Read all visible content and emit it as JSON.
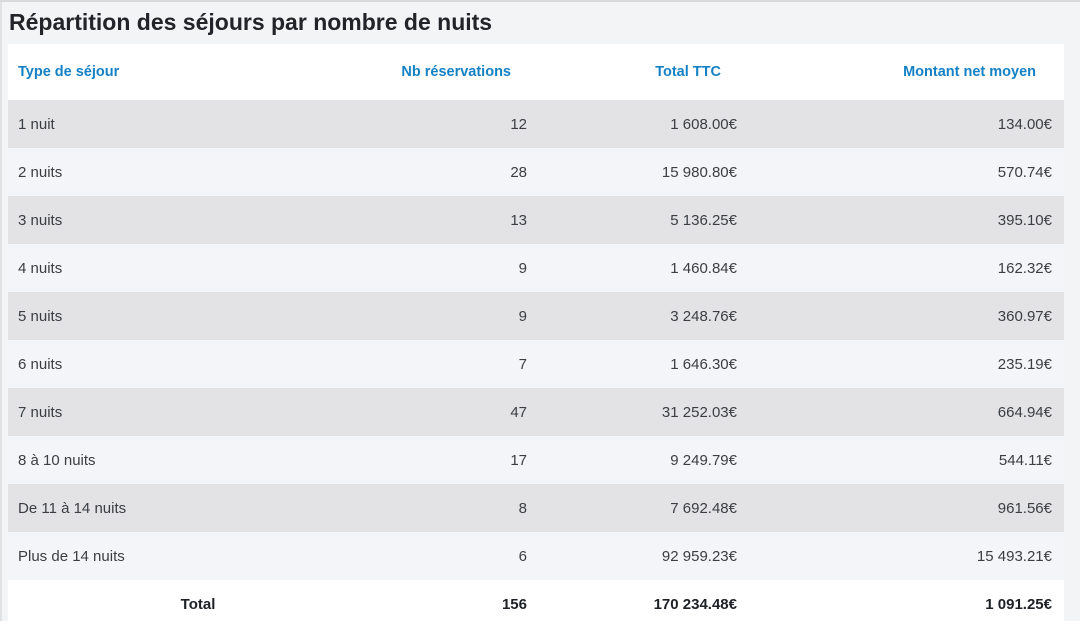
{
  "page_title": "Répartition des séjours par nombre de nuits",
  "colors": {
    "header_link_blue": "#1581c5",
    "title_text": "#212529",
    "row_alt_gray": "#e3e3e5",
    "row_light": "#f4f5f8",
    "header_and_total_bg": "#ffffff",
    "page_background": "#f3f4f6"
  },
  "table": {
    "columns": [
      {
        "label": "Type de séjour"
      },
      {
        "label": "Nb réservations"
      },
      {
        "label": "Total TTC"
      },
      {
        "label": "Montant net moyen"
      }
    ],
    "rows": [
      [
        "1 nuit",
        "12",
        "1 608.00€",
        "134.00€"
      ],
      [
        "2 nuits",
        "28",
        "15 980.80€",
        "570.74€"
      ],
      [
        "3 nuits",
        "13",
        "5 136.25€",
        "395.10€"
      ],
      [
        "4 nuits",
        "9",
        "1 460.84€",
        "162.32€"
      ],
      [
        "5 nuits",
        "9",
        "3 248.76€",
        "360.97€"
      ],
      [
        "6 nuits",
        "7",
        "1 646.30€",
        "235.19€"
      ],
      [
        "7 nuits",
        "47",
        "31 252.03€",
        "664.94€"
      ],
      [
        "8 à 10 nuits",
        "17",
        "9 249.79€",
        "544.11€"
      ],
      [
        "De 11 à 14 nuits",
        "8",
        "7 692.48€",
        "961.56€"
      ],
      [
        "Plus de 14 nuits",
        "6",
        "92 959.23€",
        "15 493.21€"
      ]
    ],
    "total_row": [
      "Total",
      "156",
      "170 234.48€",
      "1 091.25€"
    ]
  },
  "chart_data": {
    "type": "table",
    "title": "Répartition des séjours par nombre de nuits",
    "columns": [
      "Type de séjour",
      "Nb réservations",
      "Total TTC",
      "Montant net moyen"
    ],
    "categories": [
      "1 nuit",
      "2 nuits",
      "3 nuits",
      "4 nuits",
      "5 nuits",
      "6 nuits",
      "7 nuits",
      "8 à 10 nuits",
      "De 11 à 14 nuits",
      "Plus de 14 nuits"
    ],
    "series": [
      {
        "name": "Nb réservations",
        "values": [
          12,
          28,
          13,
          9,
          9,
          7,
          47,
          17,
          8,
          6
        ]
      },
      {
        "name": "Total TTC",
        "values": [
          1608.0,
          15980.8,
          5136.25,
          1460.84,
          3248.76,
          1646.3,
          31252.03,
          9249.79,
          7692.48,
          92959.23
        ]
      },
      {
        "name": "Montant net moyen",
        "values": [
          134.0,
          570.74,
          395.1,
          162.32,
          360.97,
          235.19,
          664.94,
          544.11,
          961.56,
          15493.21
        ]
      }
    ],
    "totals": {
      "Nb réservations": 156,
      "Total TTC": 170234.48,
      "Montant net moyen": 1091.25
    },
    "currency": "€",
    "number_format": "fr-FR (space thousands separator, dot decimals as shown)"
  }
}
